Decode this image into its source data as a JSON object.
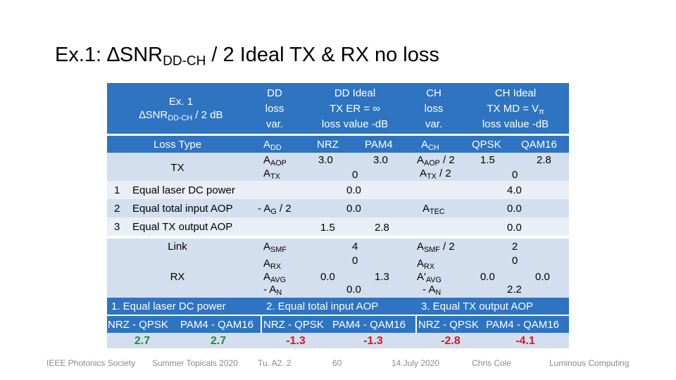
{
  "title": {
    "main": "Ex.1: ∆SNR",
    "sub": "DD-CH",
    "tail": " / 2  Ideal TX & RX no loss"
  },
  "header": {
    "ex_line1": "Ex. 1",
    "ex_snr": "∆SNR",
    "ex_sub": "DD-CH",
    "ex_tail": " / 2  dB",
    "dd_loss": [
      "DD",
      "loss",
      "var."
    ],
    "dd_ideal": [
      "DD Ideal",
      "TX ER = ∞",
      "loss value -dB"
    ],
    "ch_loss": [
      "CH",
      "loss",
      "var."
    ],
    "ch_ideal_1": "CH Ideal",
    "ch_ideal_2": "TX MD = V",
    "ch_ideal_2_sub": "π",
    "ch_ideal_3": "loss value -dB"
  },
  "loss_type": {
    "label": "Loss Type",
    "dd_var": "A",
    "dd_var_sub": "DD",
    "nrz": "NRZ",
    "pam4": "PAM4",
    "ch_var": "A",
    "ch_var_sub": "CH",
    "qpsk": "QPSK",
    "qam16": "QAM16"
  },
  "tx": {
    "label": "TX",
    "dd_var1": "A",
    "dd_var1_sub": "AOP",
    "dd_var2": "A",
    "dd_var2_sub": "TX",
    "nrz": "3.0",
    "pam4": "3.0",
    "dd_shared": "0",
    "ch_var1": "A",
    "ch_var1_sub": "AOP",
    "ch_var1_tail": " / 2",
    "ch_var2": "A",
    "ch_var2_sub": "TX",
    "ch_var2_tail": " / 2",
    "qpsk": "1.5",
    "qam16": "2.8",
    "ch_shared": "0"
  },
  "rows": [
    {
      "num": "1",
      "label": "Equal laser DC power",
      "dd_val": "0.0",
      "ch_val": "4.0"
    },
    {
      "num": "2",
      "label": "Equal total input AOP",
      "dd_var": "- A",
      "dd_var_sub": "G",
      "dd_var_tail": " / 2",
      "dd_val": "0.0",
      "ch_var": "A",
      "ch_var_sub": "TEC",
      "ch_val": "0.0"
    },
    {
      "num": "3",
      "label": "Equal TX output AOP",
      "dd_nrz": "1.5",
      "dd_pam4": "2.8",
      "ch_val": "0.0"
    }
  ],
  "link": {
    "label": "Link",
    "dd_var": "A",
    "dd_var_sub": "SMF",
    "dd_val": "4",
    "ch_var": "A",
    "ch_var_sub": "SMF",
    "ch_var_tail": " / 2",
    "ch_val": "2"
  },
  "rx": {
    "label": "RX",
    "dd_vars": [
      {
        "a": "A",
        "sub": "RX"
      },
      {
        "a": "A",
        "sub": "AVG"
      },
      {
        "a": "- A",
        "sub": "N"
      }
    ],
    "dd_v1": "0",
    "dd_nrz": "0.0",
    "dd_pam4": "1.3",
    "dd_v3": "0.0",
    "ch_vars": [
      {
        "a": "A",
        "sub": "RX"
      },
      {
        "a": "A'",
        "sub": "AVG"
      },
      {
        "a": "- A",
        "sub": "N"
      }
    ],
    "ch_v1": "0",
    "ch_qpsk": "0.0",
    "ch_qam16": "0.0",
    "ch_v3": "2.2"
  },
  "cases": [
    "1. Equal laser DC power",
    "2. Equal total input AOP",
    "3. Equal TX output AOP"
  ],
  "compare_labels": [
    "NRZ - QPSK",
    "PAM4 - QAM16",
    "NRZ - QPSK",
    "PAM4 - QAM16",
    "NRZ - QPSK",
    "PAM4 - QAM16"
  ],
  "results": [
    "2.7",
    "2.7",
    "-1.3",
    "-1.3",
    "-2.8",
    "-4.1"
  ],
  "colors": {
    "header_blue": "#2e74c0",
    "light_blue": "#d3dfee",
    "positive": "#1f8a3a",
    "negative": "#e0141e"
  },
  "footer": [
    "IEEE Photonics Society",
    "Summer Topicals 2020",
    "Tu. A2. 2",
    "60",
    "14 July 2020",
    "Chris Cole",
    "Luminous Computing"
  ]
}
